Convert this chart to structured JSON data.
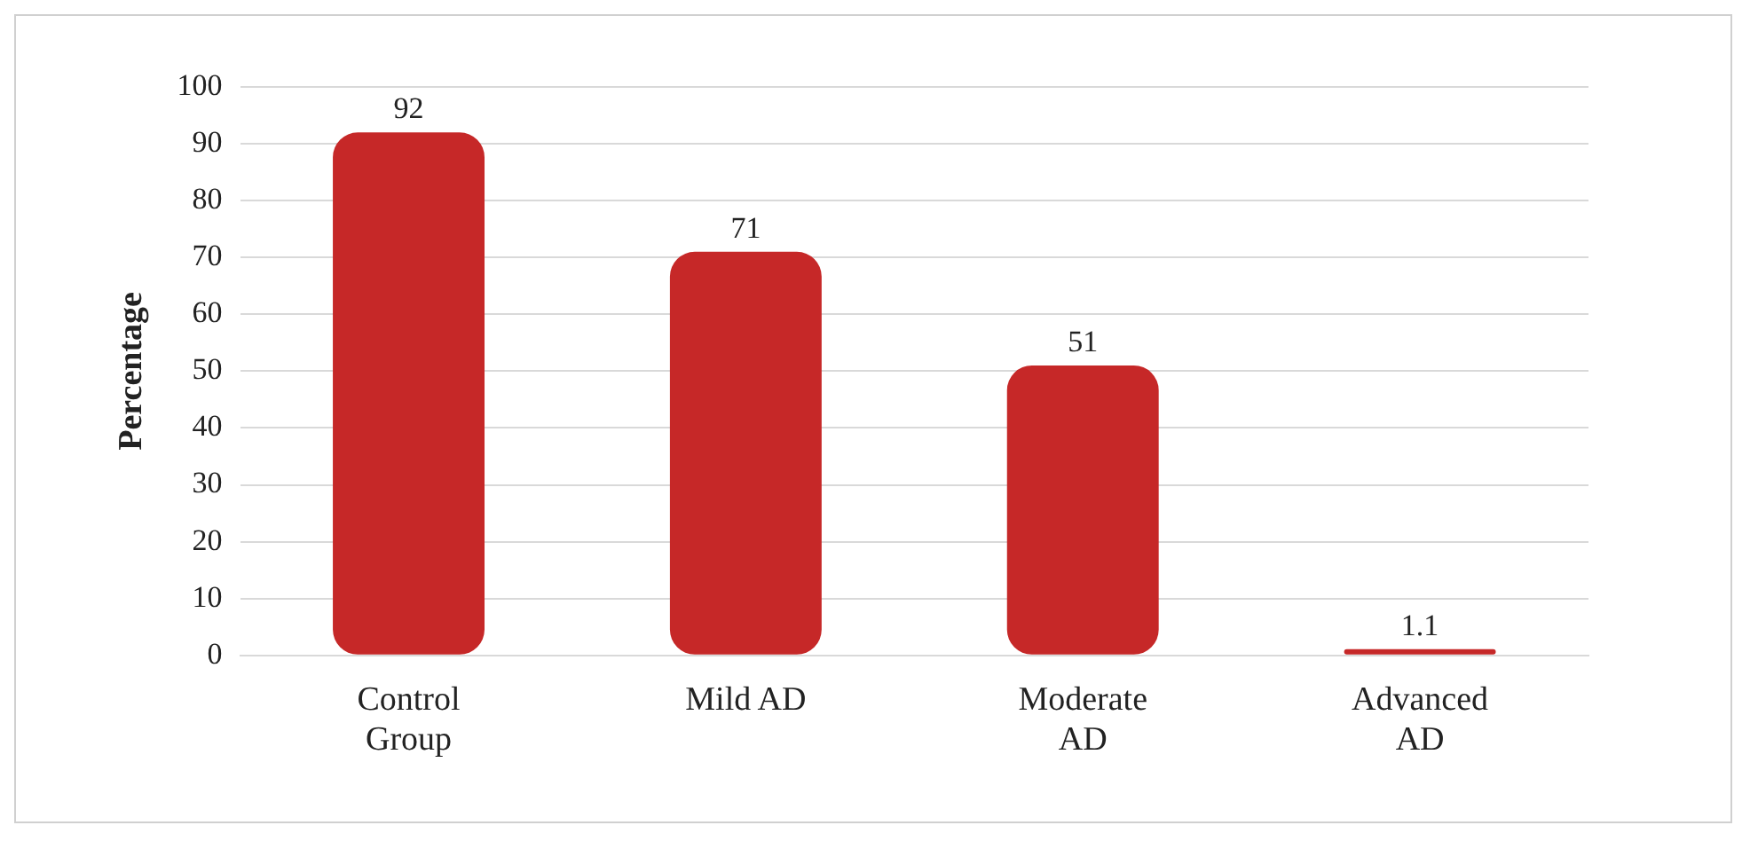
{
  "chart_data": {
    "type": "bar",
    "ylabel": "Percentage",
    "categories": [
      "Control Group",
      "Mild AD",
      "Moderate AD",
      "Advanced AD"
    ],
    "values": [
      92,
      71,
      51,
      1.1
    ],
    "color": "#c62828",
    "ylim": [
      0,
      100
    ],
    "yticks": [
      0,
      10,
      20,
      30,
      40,
      50,
      60,
      70,
      80,
      90,
      100
    ],
    "grid": "y",
    "data_labels": true
  }
}
